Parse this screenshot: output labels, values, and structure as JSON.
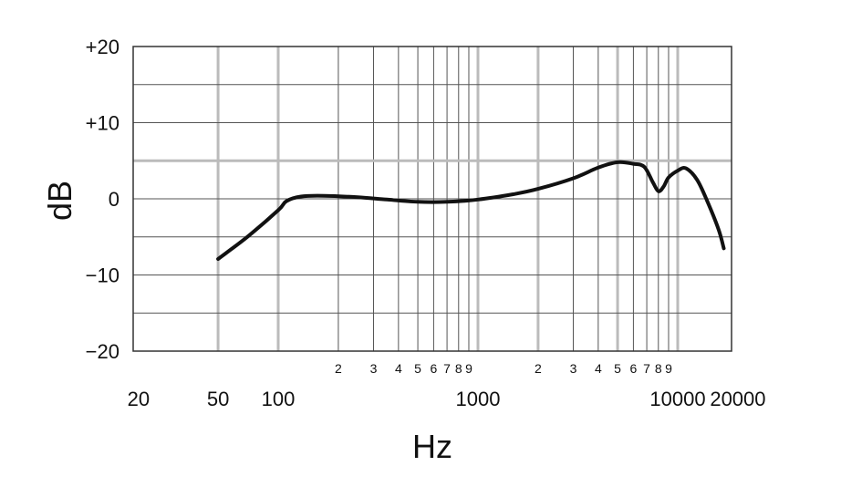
{
  "chart_data": {
    "type": "line",
    "title": "",
    "xlabel": "Hz",
    "ylabel": "dB",
    "x_scale": "log",
    "xlim": [
      20,
      20000
    ],
    "ylim": [
      -20,
      20
    ],
    "grid": true,
    "x_major_ticks": [
      {
        "value": 20,
        "label": "20"
      },
      {
        "value": 50,
        "label": "50"
      },
      {
        "value": 100,
        "label": "100"
      },
      {
        "value": 1000,
        "label": "1000"
      },
      {
        "value": 10000,
        "label": "10000"
      },
      {
        "value": 20000,
        "label": "20000"
      }
    ],
    "x_minor_ticks": [
      {
        "value": 200,
        "label": "2"
      },
      {
        "value": 300,
        "label": "3"
      },
      {
        "value": 400,
        "label": "4"
      },
      {
        "value": 500,
        "label": "5"
      },
      {
        "value": 600,
        "label": "6"
      },
      {
        "value": 700,
        "label": "7"
      },
      {
        "value": 800,
        "label": "8"
      },
      {
        "value": 900,
        "label": "9"
      },
      {
        "value": 2000,
        "label": "2"
      },
      {
        "value": 3000,
        "label": "3"
      },
      {
        "value": 4000,
        "label": "4"
      },
      {
        "value": 5000,
        "label": "5"
      },
      {
        "value": 6000,
        "label": "6"
      },
      {
        "value": 7000,
        "label": "7"
      },
      {
        "value": 8000,
        "label": "8"
      },
      {
        "value": 9000,
        "label": "9"
      }
    ],
    "y_ticks": [
      {
        "value": 20,
        "label": "+20"
      },
      {
        "value": 10,
        "label": "+10"
      },
      {
        "value": 0,
        "label": "0"
      },
      {
        "value": -10,
        "label": "−10"
      },
      {
        "value": -20,
        "label": "−20"
      }
    ],
    "y_gridlines": [
      20,
      15,
      10,
      5,
      0,
      -5,
      -10,
      -15,
      -20
    ],
    "highlight_gridlines": {
      "x": [
        50,
        100,
        1000,
        2000,
        5000,
        10000
      ],
      "y": [
        5
      ]
    },
    "colors": {
      "curve": "#111111",
      "grid": "#555555",
      "grid_highlight": "#bbbbbb"
    },
    "series": [
      {
        "values": [
          [
            50,
            -7.9
          ],
          [
            70,
            -5.0
          ],
          [
            100,
            -1.5
          ],
          [
            110,
            -0.3
          ],
          [
            130,
            0.3
          ],
          [
            170,
            0.4
          ],
          [
            250,
            0.2
          ],
          [
            350,
            -0.1
          ],
          [
            500,
            -0.4
          ],
          [
            700,
            -0.4
          ],
          [
            1000,
            -0.1
          ],
          [
            1500,
            0.6
          ],
          [
            2000,
            1.3
          ],
          [
            3000,
            2.7
          ],
          [
            4000,
            4.1
          ],
          [
            5000,
            4.8
          ],
          [
            6000,
            4.6
          ],
          [
            6800,
            4.2
          ],
          [
            7500,
            2.2
          ],
          [
            8000,
            1.0
          ],
          [
            8500,
            1.6
          ],
          [
            9000,
            2.8
          ],
          [
            10000,
            3.7
          ],
          [
            11000,
            4.0
          ],
          [
            12500,
            2.5
          ],
          [
            14000,
            -0.2
          ],
          [
            16000,
            -4.0
          ],
          [
            17000,
            -6.5
          ]
        ]
      }
    ]
  }
}
